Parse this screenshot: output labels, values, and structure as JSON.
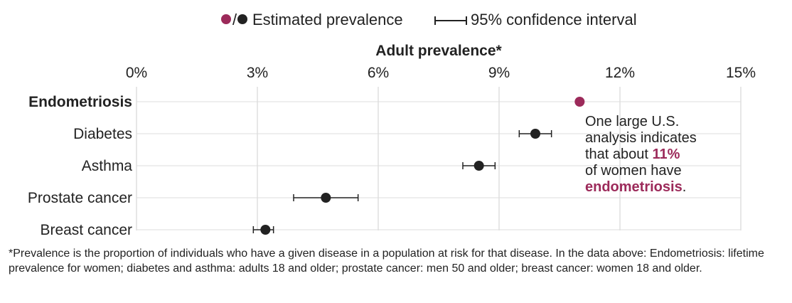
{
  "chart_data": {
    "type": "scatter",
    "title": "Adult prevalence*",
    "x_ticks": [
      "0%",
      "3%",
      "6%",
      "9%",
      "12%",
      "15%"
    ],
    "xlim": [
      0,
      15
    ],
    "categories": [
      "Endometriosis",
      "Diabetes",
      "Asthma",
      "Prostate cancer",
      "Breast cancer"
    ],
    "series": [
      {
        "name": "Estimated prevalence",
        "color_highlight": "#9c2a5a",
        "color_default": "#222222",
        "points": [
          {
            "label": "Endometriosis",
            "value": 11.0,
            "ci_low": null,
            "ci_high": null,
            "highlight": true
          },
          {
            "label": "Diabetes",
            "value": 9.9,
            "ci_low": 9.5,
            "ci_high": 10.3,
            "highlight": false
          },
          {
            "label": "Asthma",
            "value": 8.5,
            "ci_low": 8.1,
            "ci_high": 8.9,
            "highlight": false
          },
          {
            "label": "Prostate cancer",
            "value": 4.7,
            "ci_low": 3.9,
            "ci_high": 5.5,
            "highlight": false
          },
          {
            "label": "Breast cancer",
            "value": 3.2,
            "ci_low": 2.9,
            "ci_high": 3.4,
            "highlight": false
          }
        ]
      }
    ],
    "legend": {
      "point_label": "Estimated prevalence",
      "ci_label": "95% confidence interval",
      "separator": "/"
    },
    "grid": true
  },
  "annotation": {
    "line1": "One large U.S.",
    "line2": "analysis indicates",
    "line3_prefix": "that about ",
    "line3_value": "11%",
    "line4": "of women have",
    "line5_highlight": "endometriosis",
    "line5_suffix": "."
  },
  "footnote": "*Prevalence is the proportion of individuals who have a given disease in a population at risk for that disease. In the data above: Endometriosis: lifetime prevalence for women; diabetes and asthma: adults 18 and older; prostate cancer: men 50 and older; breast cancer: women 18 and older."
}
